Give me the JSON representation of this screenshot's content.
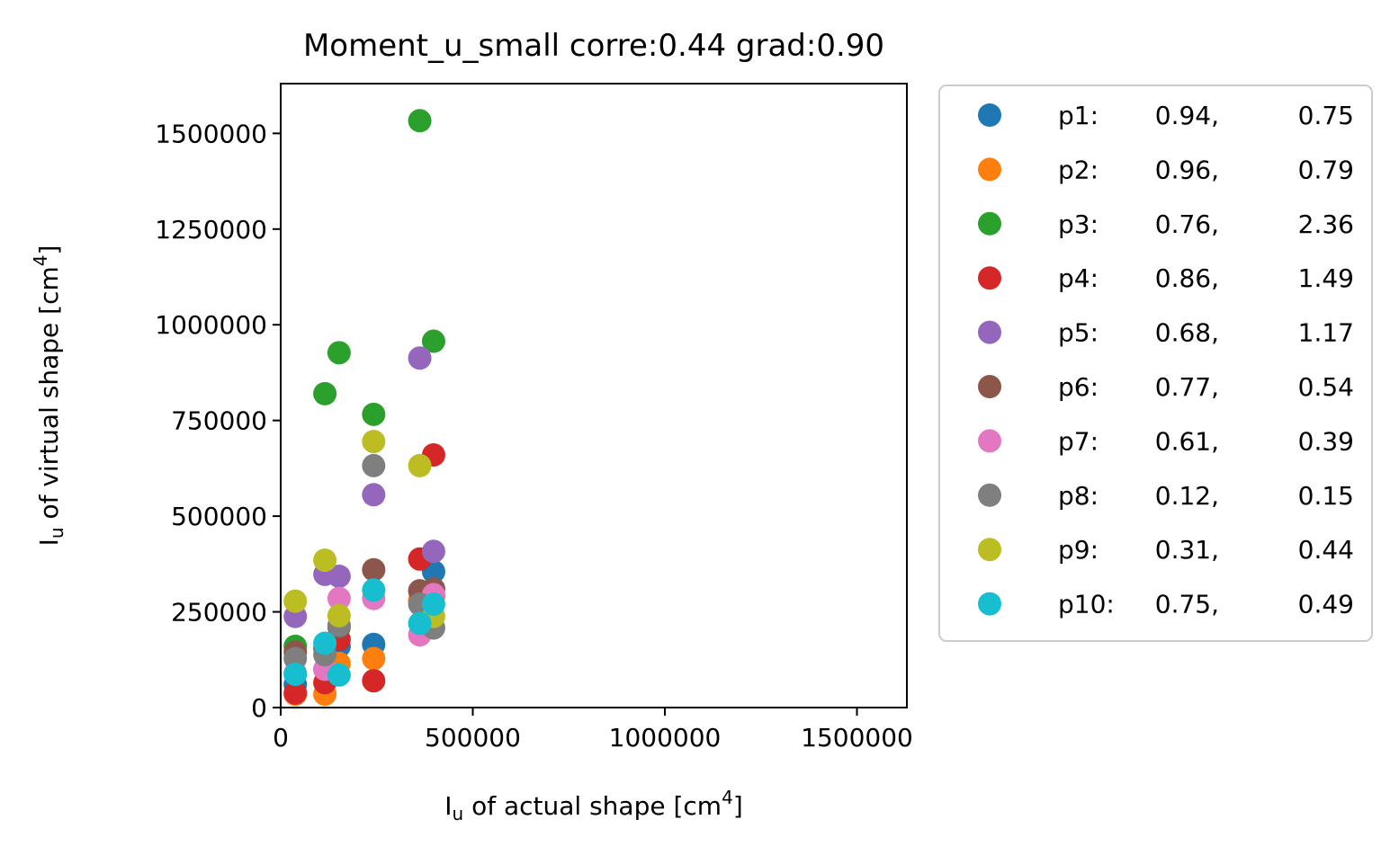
{
  "chart_data": {
    "type": "scatter",
    "title": "Moment_u_small corre:0.44 grad:0.90",
    "xlabel": {
      "base": "I",
      "sub": "u",
      "mid": " of actual shape [cm",
      "sup": "4",
      "end": "]"
    },
    "ylabel": {
      "base": "I",
      "sub": "u",
      "mid": " of virtual shape [cm",
      "sup": "4",
      "end": "]"
    },
    "xlim": [
      0,
      1630000
    ],
    "ylim": [
      0,
      1630000
    ],
    "xticks": [
      0,
      500000,
      1000000,
      1500000
    ],
    "xtick_labels": [
      "0",
      "500000",
      "1000000",
      "1500000"
    ],
    "yticks": [
      0,
      250000,
      500000,
      750000,
      1000000,
      1250000,
      1500000
    ],
    "ytick_labels": [
      "0",
      "250000",
      "500000",
      "750000",
      "1000000",
      "1250000",
      "1500000"
    ],
    "grid": false,
    "legend_position": "outside-right",
    "x": [
      38000,
      115000,
      152000,
      242000,
      362000,
      398000
    ],
    "series": [
      {
        "name": "p1",
        "label": "p1:",
        "stat1": "0.94,",
        "stat2": "0.75",
        "color": "#1f77b4",
        "values": [
          60000,
          100000,
          160000,
          165000,
          280000,
          355000
        ]
      },
      {
        "name": "p2",
        "label": "p2:",
        "stat1": "0.96,",
        "stat2": "0.79",
        "color": "#ff7f0e",
        "values": [
          35000,
          35000,
          115000,
          128000,
          280000,
          290000
        ]
      },
      {
        "name": "p3",
        "label": "p3:",
        "stat1": "0.76,",
        "stat2": "2.36",
        "color": "#2ca02c",
        "values": [
          160000,
          820000,
          927000,
          766000,
          1533000,
          957000
        ]
      },
      {
        "name": "p4",
        "label": "p4:",
        "stat1": "0.86,",
        "stat2": "1.49",
        "color": "#d62728",
        "values": [
          38000,
          65000,
          178000,
          70000,
          388000,
          660000
        ]
      },
      {
        "name": "p5",
        "label": "p5:",
        "stat1": "0.68,",
        "stat2": "1.17",
        "color": "#9467bd",
        "values": [
          238000,
          348000,
          343000,
          556000,
          913000,
          408000
        ]
      },
      {
        "name": "p6",
        "label": "p6:",
        "stat1": "0.77,",
        "stat2": "0.54",
        "color": "#8c564b",
        "values": [
          145000,
          155000,
          210000,
          360000,
          305000,
          310000
        ]
      },
      {
        "name": "p7",
        "label": "p7:",
        "stat1": "0.61,",
        "stat2": "0.39",
        "color": "#e377c2",
        "values": [
          90000,
          100000,
          285000,
          285000,
          190000,
          295000
        ]
      },
      {
        "name": "p8",
        "label": "p8:",
        "stat1": "0.12,",
        "stat2": "0.15",
        "color": "#7f7f7f",
        "values": [
          128000,
          138000,
          215000,
          632000,
          270000,
          208000
        ]
      },
      {
        "name": "p9",
        "label": "p9:",
        "stat1": "0.31,",
        "stat2": "0.44",
        "color": "#bcbd22",
        "values": [
          278000,
          385000,
          240000,
          695000,
          632000,
          238000
        ]
      },
      {
        "name": "p10",
        "label": "p10:",
        "stat1": "0.75,",
        "stat2": "0.49",
        "color": "#17becf",
        "values": [
          87000,
          168000,
          85000,
          307000,
          220000,
          270000
        ]
      }
    ]
  }
}
